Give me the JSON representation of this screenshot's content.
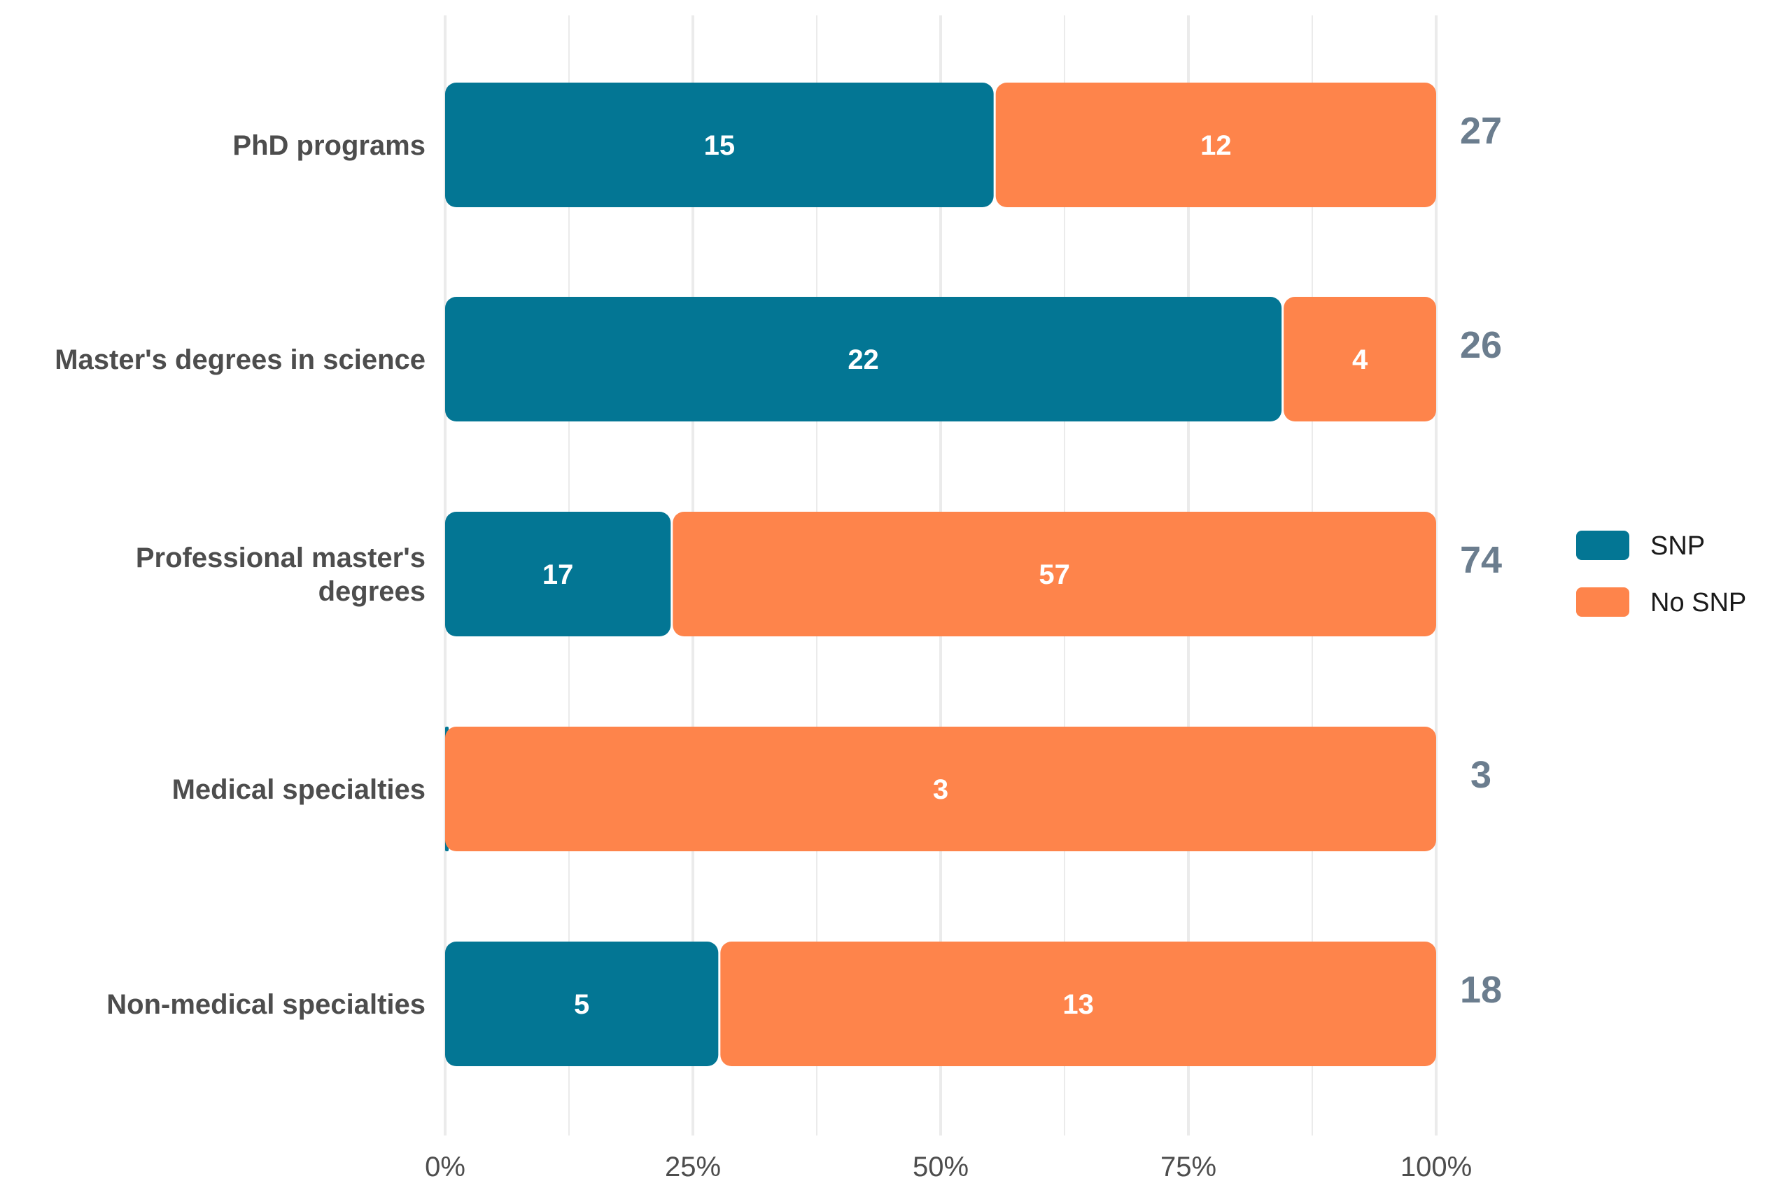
{
  "chart_data": {
    "type": "bar",
    "orientation": "horizontal",
    "stacked": true,
    "normalized": true,
    "title": "",
    "xlabel": "",
    "ylabel": "",
    "xlim": [
      0,
      100
    ],
    "x_ticks": [
      "0%",
      "25%",
      "50%",
      "75%",
      "100%"
    ],
    "grid": true,
    "legend_position": "right",
    "categories": [
      [
        "PhD programs"
      ],
      [
        "Master's degrees in science"
      ],
      [
        "Professional master's",
        "degrees"
      ],
      [
        "Medical specialties"
      ],
      [
        "Non-medical specialties"
      ]
    ],
    "series": [
      {
        "name": "SNP",
        "color": "#037694",
        "values": [
          15,
          22,
          17,
          0,
          5
        ]
      },
      {
        "name": "No SNP",
        "color": "#fe844b",
        "values": [
          12,
          4,
          57,
          3,
          13
        ]
      }
    ],
    "totals": [
      "27",
      "26",
      "74",
      "3",
      "18"
    ],
    "total_color": "#6b7d8e",
    "grid_color": "#ebebeb"
  }
}
